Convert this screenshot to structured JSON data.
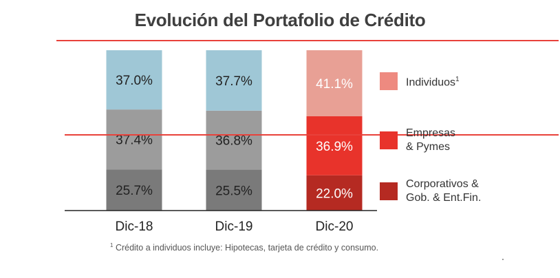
{
  "title": "Evolución del Portafolio de Crédito",
  "chart_data": {
    "type": "bar",
    "stacked": true,
    "normalized": true,
    "categories": [
      "Dic-18",
      "Dic-19",
      "Dic-20"
    ],
    "series": [
      {
        "name": "Corporativos & Gob. & Ent.Fin.",
        "values": [
          25.7,
          25.5,
          22.0
        ],
        "labels": [
          "25.7%",
          "25.5%",
          "22.0%"
        ],
        "colors": [
          "#7a7a7a",
          "#7a7a7a",
          "#b52a22"
        ]
      },
      {
        "name": "Empresas & Pymes",
        "values": [
          37.4,
          36.8,
          36.9
        ],
        "labels": [
          "37.4%",
          "36.8%",
          "36.9%"
        ],
        "colors": [
          "#9c9c9c",
          "#9c9c9c",
          "#e8332b"
        ]
      },
      {
        "name": "Individuos",
        "values": [
          37.0,
          37.7,
          41.1
        ],
        "labels": [
          "37.0%",
          "37.7%",
          "41.1%"
        ],
        "colors": [
          "#9fc7d6",
          "#9fc7d6",
          "#e8a095"
        ]
      }
    ],
    "label_colors": [
      "#222222",
      "#222222",
      "#ffffff"
    ],
    "ylim": [
      0,
      100
    ],
    "grid": false,
    "legend_position": "right"
  },
  "legend": [
    {
      "label": "Individuos",
      "sup": "1",
      "color": "#ee8a80"
    },
    {
      "label_line1": "Empresas",
      "label_line2": "& Pymes",
      "color": "#e8332b"
    },
    {
      "label_line1": "Corporativos &",
      "label_line2": "Gob. & Ent.Fin.",
      "color": "#b52a22"
    }
  ],
  "footnote": {
    "sup": "1",
    "text": "Crédito a individuos incluye: Hipotecas, tarjeta de crédito y consumo."
  },
  "colors": {
    "accent_red": "#e8413a",
    "axis": "#222222"
  }
}
